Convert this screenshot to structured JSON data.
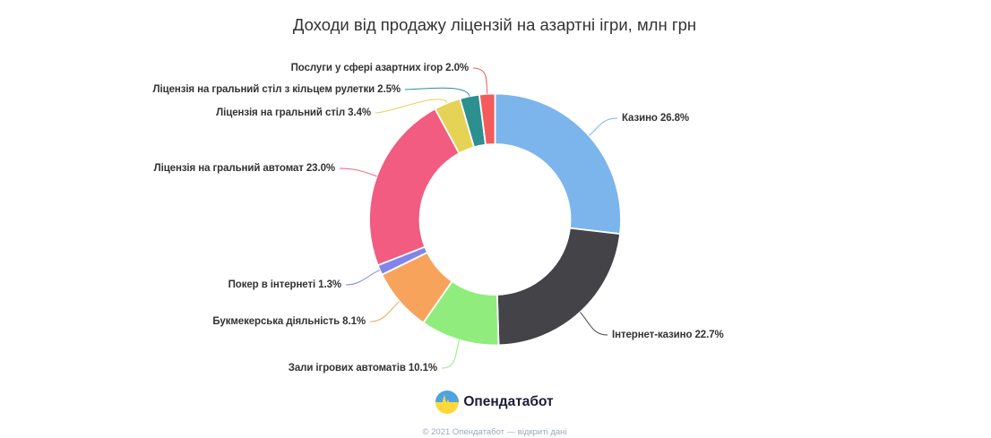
{
  "title": "Доходи від продажу ліцензій на азартні ігри, млн грн",
  "chart_data": {
    "type": "pie",
    "subtype": "donut",
    "title": "Доходи від продажу ліцензій на азартні ігри, млн грн",
    "unit": "%",
    "legend_position": "none",
    "series": [
      {
        "name": "Казино",
        "value": 26.8,
        "color": "#7cb5ec"
      },
      {
        "name": "Інтернет-казино",
        "value": 22.7,
        "color": "#434348"
      },
      {
        "name": "Зали ігрових автоматів",
        "value": 10.1,
        "color": "#90ed7d"
      },
      {
        "name": "Букмекерська діяльність",
        "value": 8.1,
        "color": "#f7a35c"
      },
      {
        "name": "Покер в інтернеті",
        "value": 1.3,
        "color": "#8085e9"
      },
      {
        "name": "Ліцензія на гральний автомат",
        "value": 23.0,
        "color": "#f15c80"
      },
      {
        "name": "Ліцензія на гральний стіл",
        "value": 3.4,
        "color": "#e4d354"
      },
      {
        "name": "Ліцензія на гральний стіл з кільцем рулетки",
        "value": 2.5,
        "color": "#2b908f"
      },
      {
        "name": "Послуги у сфері азартних ігор",
        "value": 2.0,
        "color": "#f45b5b"
      }
    ],
    "label_format": "{name} {value}%"
  },
  "logo": {
    "text": "Опендатабот",
    "icon": "opendatabot-pulse-icon",
    "icon_blue": "#4da4e0",
    "icon_yellow": "#ffd83b"
  },
  "footer": "© 2021 Опендатабот — відкриті дані"
}
